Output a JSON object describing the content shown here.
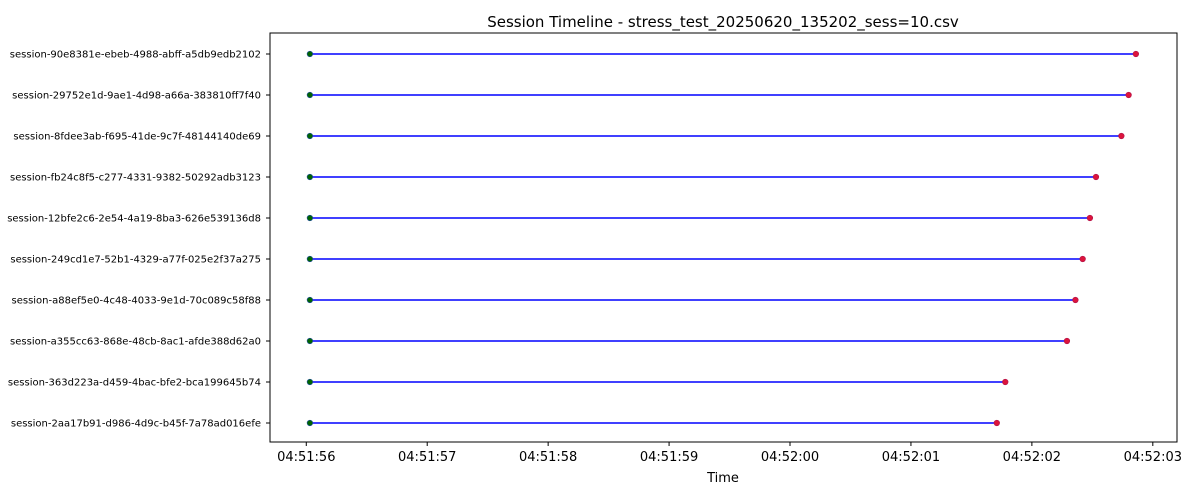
{
  "chart_data": {
    "type": "timeline",
    "title": "Session Timeline - stress_test_20250620_135202_sess=10.csv",
    "xlabel": "Time",
    "ylabel": "",
    "xlim": [
      "04:51:55.700",
      "04:52:03.200"
    ],
    "x_ticks": [
      "04:51:56",
      "04:51:57",
      "04:51:58",
      "04:51:59",
      "04:52:00",
      "04:52:01",
      "04:52:02",
      "04:52:03"
    ],
    "grid": false,
    "legend": false,
    "colors": {
      "line": "#0000ff",
      "start": "#006400",
      "end": "#dc143c"
    },
    "sessions": [
      {
        "name": "session-90e8381e-ebeb-4988-abff-a5db9edb2102",
        "start": "04:51:56.030",
        "end": "04:52:02.860"
      },
      {
        "name": "session-29752e1d-9ae1-4d98-a66a-383810ff7f40",
        "start": "04:51:56.030",
        "end": "04:52:02.800"
      },
      {
        "name": "session-8fdee3ab-f695-41de-9c7f-48144140de69",
        "start": "04:51:56.030",
        "end": "04:52:02.740"
      },
      {
        "name": "session-fb24c8f5-c277-4331-9382-50292adb3123",
        "start": "04:51:56.030",
        "end": "04:52:02.530"
      },
      {
        "name": "session-12bfe2c6-2e54-4a19-8ba3-626e539136d8",
        "start": "04:51:56.030",
        "end": "04:52:02.480"
      },
      {
        "name": "session-249cd1e7-52b1-4329-a77f-025e2f37a275",
        "start": "04:51:56.030",
        "end": "04:52:02.420"
      },
      {
        "name": "session-a88ef5e0-4c48-4033-9e1d-70c089c58f88",
        "start": "04:51:56.030",
        "end": "04:52:02.360"
      },
      {
        "name": "session-a355cc63-868e-48cb-8ac1-afde388d62a0",
        "start": "04:51:56.030",
        "end": "04:52:02.290"
      },
      {
        "name": "session-363d223a-d459-4bac-bfe2-bca199645b74",
        "start": "04:51:56.030",
        "end": "04:52:01.780"
      },
      {
        "name": "session-2aa17b91-d986-4d9c-b45f-7a78ad016efe",
        "start": "04:51:56.030",
        "end": "04:52:01.710"
      }
    ]
  }
}
